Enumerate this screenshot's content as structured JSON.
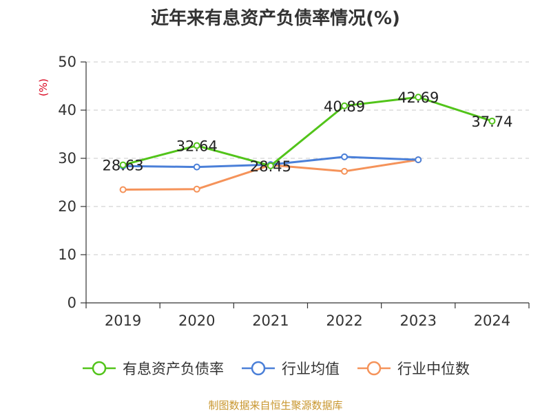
{
  "chart_data": {
    "type": "line",
    "title": "近年来有息资产负债率情况(%)",
    "ylabel": "(%)",
    "categories": [
      "2019",
      "2020",
      "2021",
      "2022",
      "2023",
      "2024"
    ],
    "ylim": [
      0,
      50
    ],
    "yticks": [
      0,
      10,
      20,
      30,
      40,
      50
    ],
    "grid": true,
    "legend_position": "bottom",
    "series": [
      {
        "name": "有息资产负债率",
        "color": "#52c41a",
        "values": [
          28.63,
          32.64,
          28.45,
          40.89,
          42.69,
          37.74
        ],
        "labels": [
          "28.63",
          "32.64",
          "28.45",
          "40.89",
          "42.69",
          "37.74"
        ]
      },
      {
        "name": "行业均值",
        "color": "#4a7fd8",
        "values": [
          28.4,
          28.2,
          28.7,
          30.3,
          29.7,
          null
        ]
      },
      {
        "name": "行业中位数",
        "color": "#f5935a",
        "values": [
          23.5,
          23.6,
          28.6,
          27.3,
          29.7,
          null
        ]
      }
    ]
  },
  "source_note": "制图数据来自恒生聚源数据库"
}
